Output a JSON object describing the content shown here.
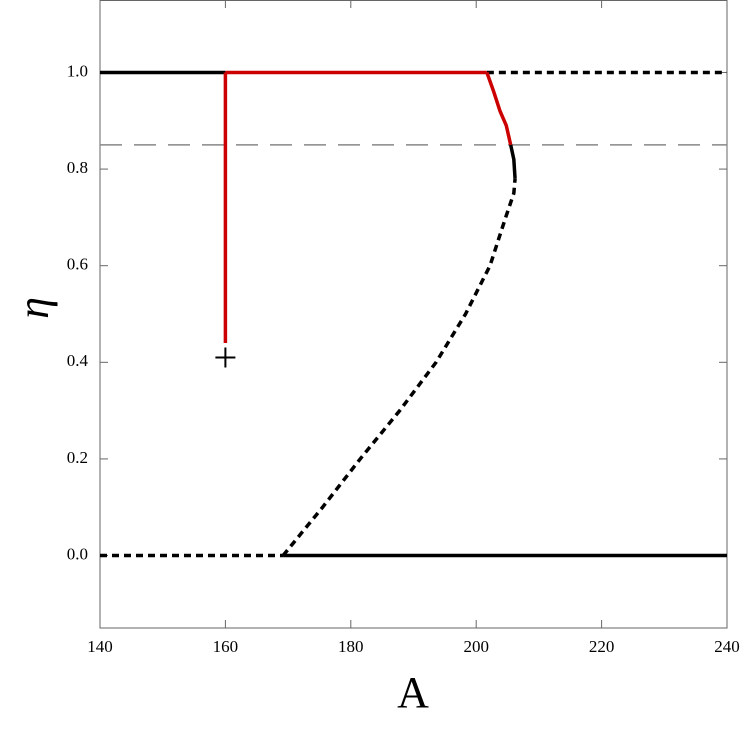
{
  "chart_data": {
    "type": "line",
    "x_label": "A",
    "y_label": "η",
    "xlim": [
      140,
      240
    ],
    "ylim": [
      -0.15,
      1.15
    ],
    "xticks": [
      140,
      160,
      180,
      200,
      220,
      240
    ],
    "yticks": [
      {
        "value": 0,
        "label": "0.0"
      },
      0.2,
      0.4,
      0.6,
      0.8,
      {
        "value": 1,
        "label": "1.0"
      }
    ],
    "series": [
      {
        "x": [
          140,
          160
        ],
        "values": [
          1,
          1
        ],
        "color": "#000000",
        "style": "solid"
      },
      {
        "x": [
          201.7,
          240
        ],
        "values": [
          1,
          1
        ],
        "color": "#000000",
        "style": "dashed"
      },
      {
        "x": [
          140,
          169.2
        ],
        "values": [
          0,
          0
        ],
        "color": "#000000",
        "style": "dashed"
      },
      {
        "x": [
          169.2,
          240
        ],
        "values": [
          0,
          0
        ],
        "color": "#000000",
        "style": "solid"
      },
      {
        "x": [
          169.2,
          175.5,
          181.5,
          187.8,
          193.6,
          198.3,
          202.2,
          204.7,
          206.0,
          206.2
        ],
        "values": [
          0,
          0.1,
          0.2,
          0.3,
          0.4,
          0.5,
          0.6,
          0.7,
          0.75,
          0.78
        ],
        "color": "#000000",
        "style": "dashed"
      },
      {
        "x": [
          206.2,
          206.0,
          205.5
        ],
        "values": [
          0.78,
          0.82,
          0.85
        ],
        "color": "#000000",
        "style": "solid"
      },
      {
        "x": [
          205.5,
          204.8,
          203.8,
          202.8,
          201.7
        ],
        "values": [
          0.85,
          0.89,
          0.92,
          0.96,
          1
        ],
        "color": "#cc0000",
        "style": "solid"
      },
      {
        "x": [
          160,
          201.7
        ],
        "values": [
          1,
          1
        ],
        "color": "#cc0000",
        "style": "solid"
      },
      {
        "x": [
          160,
          160
        ],
        "values": [
          0.44,
          1
        ],
        "color": "#cc0000",
        "style": "solid"
      }
    ],
    "hlines": [
      {
        "value": 0.85,
        "color": "#888888",
        "style": "dashed"
      }
    ],
    "markers": [
      {
        "x": 160,
        "y": 0.41,
        "symbol": "+",
        "color": "#000000"
      }
    ]
  }
}
